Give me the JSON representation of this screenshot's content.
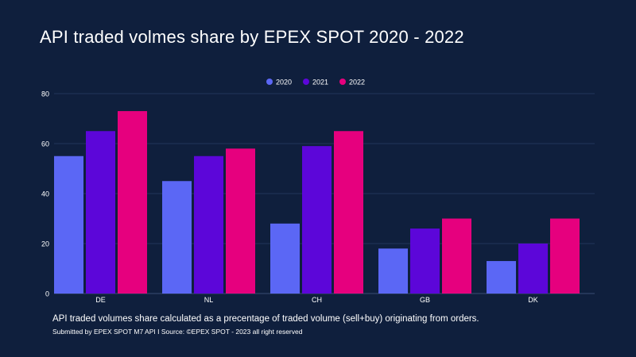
{
  "title": "API traded volmes share by EPEX SPOT 2020 - 2022",
  "note": "API traded volumes share calculated as a precentage of traded volume (sell+buy) originating from orders.",
  "source": "Submitted by EPEX SPOT M7 API I Source: ©EPEX SPOT - 2023 all right reserved",
  "colors": {
    "background": "#0f1f3d",
    "grid": "#22355a",
    "series": [
      "#5b67f5",
      "#5c06d9",
      "#e6007e"
    ]
  },
  "chart_data": {
    "type": "bar",
    "categories": [
      "DE",
      "NL",
      "CH",
      "GB",
      "DK"
    ],
    "series": [
      {
        "name": "2020",
        "values": [
          55,
          45,
          28,
          18,
          13
        ]
      },
      {
        "name": "2021",
        "values": [
          65,
          55,
          59,
          26,
          20
        ]
      },
      {
        "name": "2022",
        "values": [
          73,
          58,
          65,
          30,
          30
        ]
      }
    ],
    "ylim": [
      0,
      80
    ],
    "yticks": [
      0,
      20,
      40,
      60,
      80
    ],
    "xlabel": "",
    "ylabel": "",
    "legend": "top-center",
    "grid": true
  }
}
